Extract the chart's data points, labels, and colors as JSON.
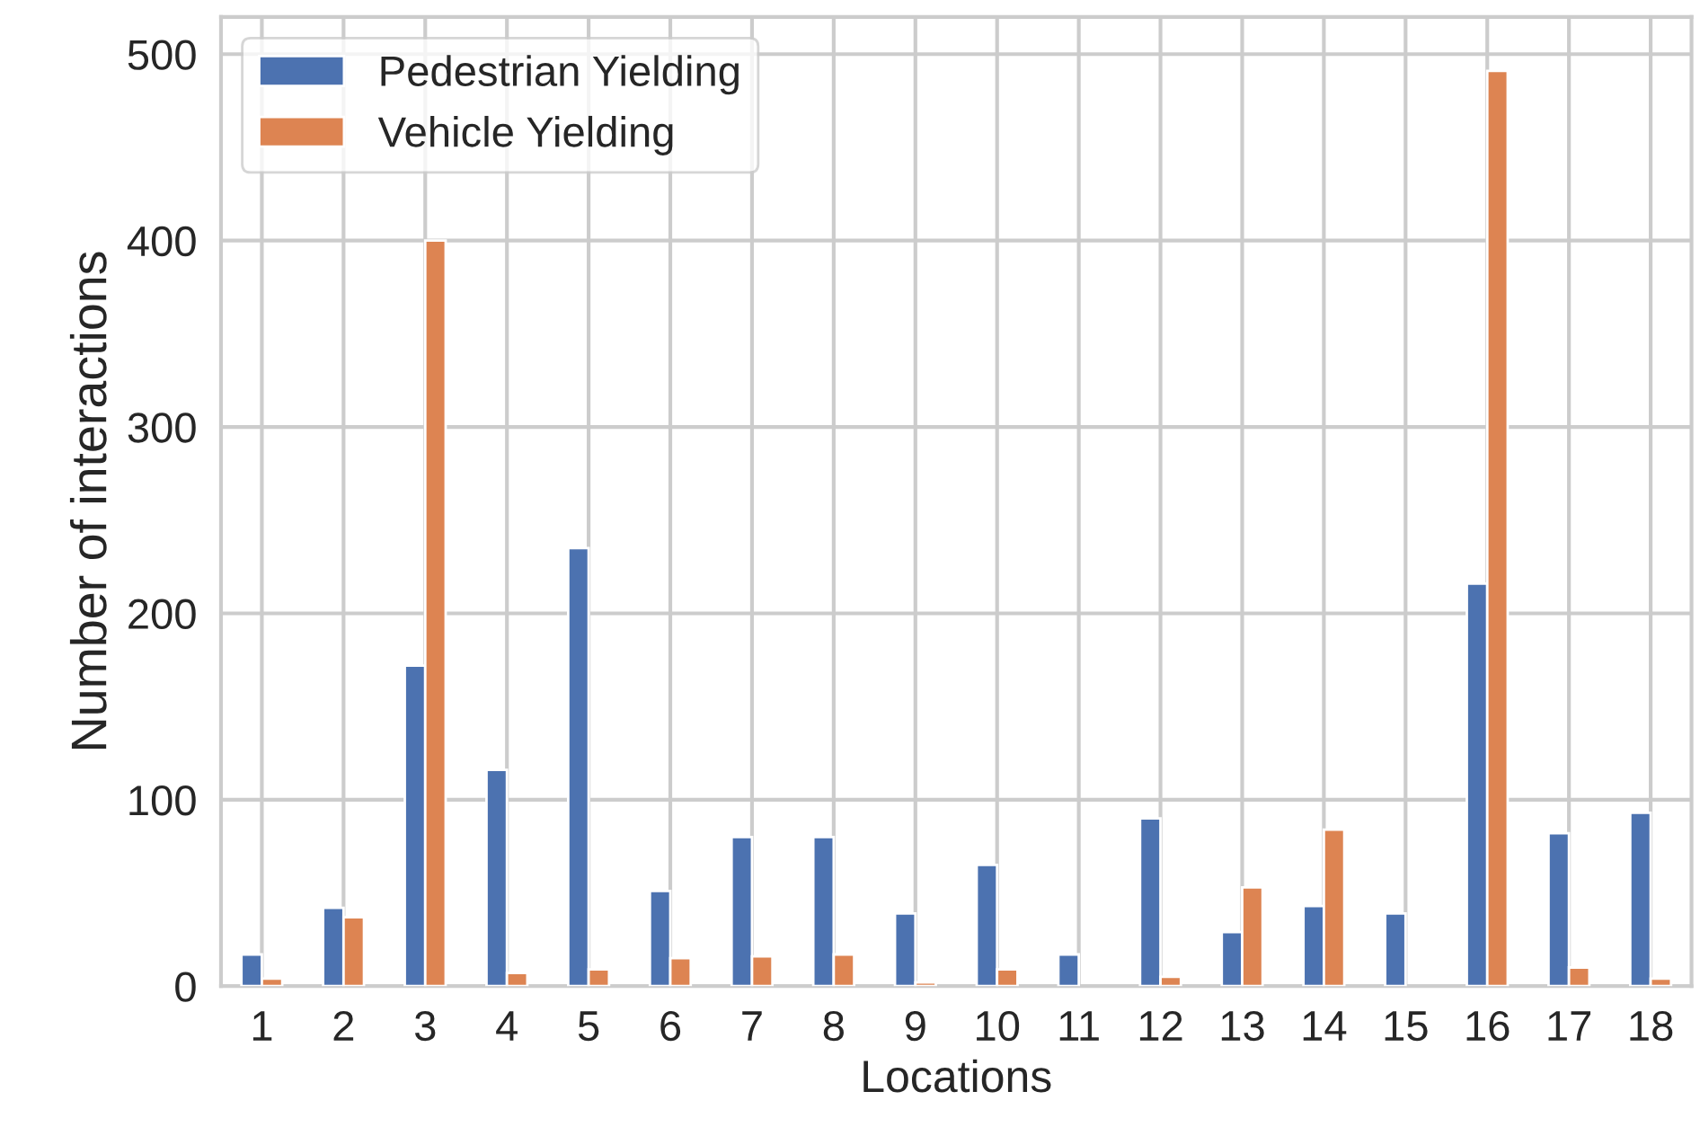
{
  "chart_data": {
    "type": "bar",
    "xlabel": "Locations",
    "ylabel": "Number of interactions",
    "categories": [
      "1",
      "2",
      "3",
      "4",
      "5",
      "6",
      "7",
      "8",
      "9",
      "10",
      "11",
      "12",
      "13",
      "14",
      "15",
      "16",
      "17",
      "18"
    ],
    "series": [
      {
        "name": "Pedestrian Yielding",
        "color": "#4c72b0",
        "values": [
          17,
          42,
          172,
          116,
          235,
          51,
          80,
          80,
          39,
          65,
          17,
          90,
          29,
          43,
          39,
          216,
          82,
          93
        ]
      },
      {
        "name": "Vehicle Yielding",
        "color": "#dd8452",
        "values": [
          4,
          37,
          400,
          7,
          9,
          15,
          16,
          17,
          2,
          9,
          null,
          5,
          53,
          84,
          null,
          491,
          10,
          4
        ]
      }
    ],
    "ylim": [
      0,
      520
    ],
    "yticks": [
      0,
      100,
      200,
      300,
      400,
      500
    ],
    "grid": true,
    "legend": "top left"
  }
}
